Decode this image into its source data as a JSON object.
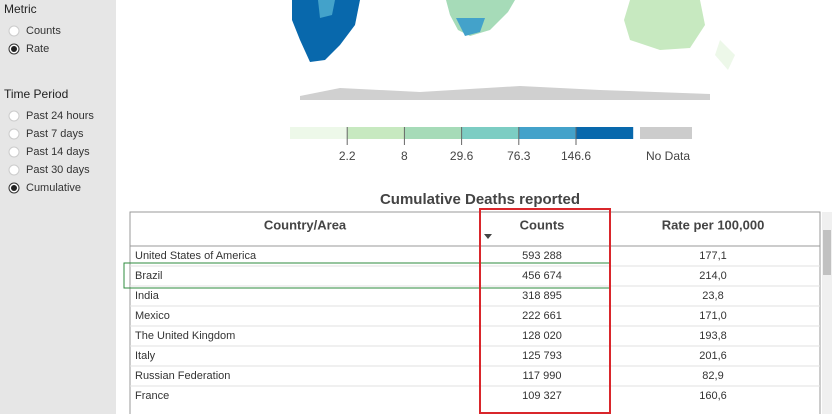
{
  "sidebar": {
    "metric": {
      "label": "Metric",
      "options": [
        "Counts",
        "Rate"
      ],
      "selected": 1
    },
    "time_period": {
      "label": "Time Period",
      "options": [
        "Past 24 hours",
        "Past 7 days",
        "Past 14 days",
        "Past 30 days",
        "Cumulative"
      ],
      "selected": 4
    }
  },
  "legend": {
    "colors": [
      "#edf8e9",
      "#c7e9c0",
      "#a6dbb8",
      "#7ccdc3",
      "#43a2ca",
      "#0868ac"
    ],
    "ticks": [
      "2.2",
      "8",
      "29.6",
      "76.3",
      "146.6"
    ],
    "no_data": "No Data",
    "no_data_color": "#cccccc"
  },
  "table": {
    "title": "Cumulative Deaths reported",
    "columns": [
      "Country/Area",
      "Counts",
      "Rate per 100,000"
    ],
    "rows": [
      [
        "United States of America",
        "593 288",
        "177,1"
      ],
      [
        "Brazil",
        "456 674",
        "214,0"
      ],
      [
        "India",
        "318 895",
        "23,8"
      ],
      [
        "Mexico",
        "222 661",
        "171,0"
      ],
      [
        "The United Kingdom",
        "128 020",
        "193,8"
      ],
      [
        "Italy",
        "125 793",
        "201,6"
      ],
      [
        "Russian Federation",
        "117 990",
        "82,9"
      ],
      [
        "France",
        "109 327",
        "160,6"
      ]
    ]
  }
}
